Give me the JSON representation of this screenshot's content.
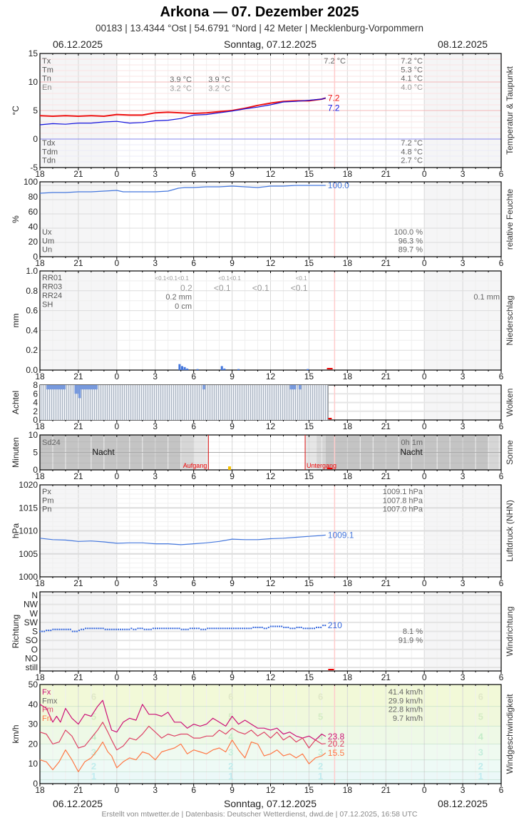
{
  "header": {
    "title": "Arkona  —  07. Dezember 2025",
    "subtitle": "00183  |  13.4344 °Ost  |  54.6791 °Nord  |  42 Meter  |  Mecklenburg-Vorpommern",
    "date_prev": "06.12.2025",
    "date_current": "Sonntag, 07.12.2025",
    "date_next": "08.12.2025"
  },
  "footer": {
    "date_prev": "06.12.2025",
    "date_current": "Sonntag, 07.12.2025",
    "date_next": "08.12.2025",
    "credits": "Erstellt von mtwetter.de | Datenbasis: Deutscher Wetterdienst, dwd.de | 07.12.2025, 16:58 UTC"
  },
  "x_ticks": [
    "18",
    "21",
    "0",
    "3",
    "6",
    "9",
    "12",
    "15",
    "18",
    "21",
    "0",
    "3",
    "6"
  ],
  "colors": {
    "temp": "#ee1111",
    "dew": "#1111dd",
    "humidity": "#4477dd",
    "precip": "#4477dd",
    "cloud": "#7799dd",
    "pressure": "#4477dd",
    "winddir": "#3366dd",
    "gust": "#cc1177",
    "wind_mean": "#dd4466",
    "wind_min": "#ff7744",
    "now_line": "#ffcccc",
    "sun_line": "#dd1111"
  },
  "chart_data": [
    {
      "id": "temperature",
      "type": "line",
      "side_title": "Temperatur & Taupunkt",
      "ylabel": "°C",
      "ylim": [
        -5,
        15
      ],
      "yticks": [
        "15",
        "10",
        "5",
        "0",
        "-5"
      ],
      "x_hours_from": "18 (06.12.)",
      "series": [
        {
          "name": "Temperatur",
          "color": "#ee1111",
          "last_label": "7.2",
          "x": [
            18,
            19,
            20,
            21,
            22,
            23,
            0,
            1,
            2,
            3,
            4,
            5,
            6,
            7,
            8,
            9,
            10,
            11,
            12,
            13,
            14,
            15,
            16,
            16.3
          ],
          "values": [
            4.1,
            4.0,
            4.1,
            4.0,
            4.1,
            4.0,
            4.3,
            4.2,
            4.2,
            4.6,
            4.7,
            4.6,
            4.5,
            4.6,
            4.8,
            5.0,
            5.4,
            5.9,
            6.3,
            6.6,
            6.7,
            6.7,
            7.0,
            7.2
          ]
        },
        {
          "name": "Taupunkt",
          "color": "#1111dd",
          "last_label": "7.2",
          "x": [
            18,
            19,
            20,
            21,
            22,
            23,
            0,
            1,
            2,
            3,
            4,
            5,
            6,
            7,
            8,
            9,
            10,
            11,
            12,
            13,
            14,
            15,
            16,
            16.3
          ],
          "values": [
            2.5,
            2.7,
            2.6,
            2.8,
            2.8,
            3.0,
            3.1,
            2.8,
            2.9,
            3.2,
            3.3,
            3.6,
            4.2,
            4.3,
            4.6,
            4.9,
            5.3,
            5.6,
            6.0,
            6.5,
            6.6,
            6.8,
            7.0,
            7.2
          ]
        }
      ],
      "stats_left": [
        {
          "label": "Tx",
          "v1": "",
          "v2": ""
        },
        {
          "label": "Tm",
          "v1": "",
          "v2": ""
        },
        {
          "label": "Tn",
          "v1": "3.9 °C",
          "v2": "3.9 °C"
        },
        {
          "label": "En",
          "v1": "3.2 °C",
          "v2": "3.2 °C"
        }
      ],
      "tx_today": "7.2 °C",
      "stats_right": [
        "7.2 °C",
        "5.3 °C",
        "4.1 °C",
        "4.0 °C"
      ],
      "dew_labels": [
        "Tdx",
        "Tdm",
        "Tdn"
      ],
      "dew_stats": [
        "7.2 °C",
        "4.8 °C",
        "2.7 °C"
      ]
    },
    {
      "id": "humidity",
      "type": "line",
      "side_title": "relative Feuchte",
      "ylabel": "%",
      "ylim": [
        0,
        100
      ],
      "yticks": [
        "100",
        "80",
        "60",
        "40",
        "20",
        "0"
      ],
      "series": [
        {
          "name": "relative Feuchte",
          "color": "#4477dd",
          "last_label": "100.0",
          "x": [
            18,
            19,
            20,
            21,
            22,
            23,
            0,
            0.5,
            1,
            2,
            3,
            4,
            4.8,
            5.3,
            6,
            7,
            8,
            9,
            10,
            11,
            12,
            13,
            14,
            15,
            16,
            16.3
          ],
          "values": [
            89,
            90,
            90,
            91,
            91,
            92,
            93,
            91,
            91,
            91,
            91,
            92,
            96,
            97,
            97,
            98,
            98,
            99,
            98,
            97,
            99,
            99,
            100,
            100,
            100,
            100
          ]
        }
      ],
      "stats_labels": [
        "Ux",
        "Um",
        "Un"
      ],
      "stats": [
        "100.0 %",
        "96.3 %",
        "89.7 %"
      ]
    },
    {
      "id": "precipitation",
      "type": "bar",
      "side_title": "Niederschlag",
      "ylabel": "mm",
      "ylim": [
        0,
        1.0
      ],
      "yticks": [
        "1.0",
        "0.8",
        "0.6",
        "0.4",
        "0.2",
        "0.0"
      ],
      "bars": {
        "x": [
          4.9,
          5.1,
          5.3,
          5.5,
          6.3,
          8.2,
          8.4,
          9.5,
          14.9
        ],
        "values": [
          0.06,
          0.04,
          0.03,
          0.015,
          0.01,
          0.04,
          0.015,
          0.01,
          0.01
        ]
      },
      "labels": [
        "RR01",
        "RR03",
        "RR24",
        "SH"
      ],
      "rr01": [
        {
          "hour": 4.3,
          "text": "<0.1<0.1<0.1"
        },
        {
          "hour": 8.8,
          "text": "<0.1<0.1"
        },
        {
          "hour": 14.4,
          "text": "<0.1"
        }
      ],
      "rr03": [
        {
          "hour": 6,
          "text": "0.2"
        },
        {
          "hour": 9,
          "text": "<0.1"
        },
        {
          "hour": 12,
          "text": "<0.1"
        },
        {
          "hour": 15,
          "text": "<0.1"
        }
      ],
      "rr24_today": "0.2 mm",
      "sh_today": "0 cm",
      "rr24_next": "0.1 mm"
    },
    {
      "id": "clouds",
      "type": "bar",
      "side_title": "Wolken",
      "ylabel": "Achtel",
      "ylim": [
        0,
        8
      ],
      "yticks": [
        "8",
        "6",
        "4",
        "2",
        "0"
      ],
      "coverage_until_hour": 16.5,
      "dips": [
        {
          "from": 18.5,
          "to": 20.0,
          "value": 7
        },
        {
          "from": 20.7,
          "to": 21.0,
          "value": 6
        },
        {
          "from": 21.0,
          "to": 21.2,
          "value": 5
        },
        {
          "from": 21.2,
          "to": 22.5,
          "value": 7
        },
        {
          "from": 6.7,
          "to": 6.9,
          "value": 7
        },
        {
          "from": 13.5,
          "to": 14.0,
          "value": 7
        },
        {
          "from": 14.2,
          "to": 14.4,
          "value": 7
        }
      ]
    },
    {
      "id": "sunshine",
      "type": "bar",
      "side_title": "Sonne",
      "ylabel": "Minuten",
      "ylim": [
        0,
        10
      ],
      "yticks": [
        "10",
        "5",
        "0"
      ],
      "label": "Sd24",
      "night_label": "Nacht",
      "sunrise_label": "Aufgang",
      "sunset_label": "Untergang",
      "sunrise_hour": 7.15,
      "sunset_hour": 14.7,
      "sd24_next": "0h 1m",
      "bars": {
        "x": [
          8.8
        ],
        "values": [
          1
        ]
      }
    },
    {
      "id": "pressure",
      "type": "line",
      "side_title": "Luftdruck (NHN)",
      "ylabel": "hPa",
      "ylim": [
        1000,
        1020
      ],
      "yticks": [
        "1020",
        "1015",
        "1010",
        "1005",
        "1000"
      ],
      "series": [
        {
          "name": "Luftdruck",
          "color": "#4477dd",
          "last_label": "1009.1",
          "x": [
            18,
            19,
            20,
            21,
            22,
            23,
            0,
            1,
            2,
            3,
            4,
            5,
            6,
            7,
            8,
            9,
            10,
            11,
            12,
            13,
            14,
            15,
            16,
            16.3
          ],
          "values": [
            1008.4,
            1008.1,
            1008.0,
            1007.7,
            1007.8,
            1007.6,
            1007.3,
            1007.4,
            1007.4,
            1007.2,
            1007.2,
            1007.0,
            1007.2,
            1007.4,
            1007.7,
            1008.2,
            1008.1,
            1008.1,
            1008.3,
            1008.4,
            1008.6,
            1008.8,
            1009.0,
            1009.1
          ]
        }
      ],
      "stats_labels": [
        "Px",
        "Pm",
        "Pn"
      ],
      "stats": [
        "1009.1 hPa",
        "1007.8 hPa",
        "1007.0 hPa"
      ]
    },
    {
      "id": "wind_direction",
      "type": "scatter",
      "side_title": "Windrichtung",
      "ylabel": "Richtung",
      "ycats": [
        "N",
        "NW",
        "W",
        "SW",
        "S",
        "SO",
        "O",
        "NO",
        "still"
      ],
      "series": [
        {
          "name": "Windrichtung (Grad)",
          "color": "#3366dd",
          "last_label": "210",
          "x": [
            18,
            18.5,
            19,
            19.5,
            20,
            20.5,
            21,
            21.2,
            21.5,
            22,
            22.5,
            23,
            0,
            0.5,
            1,
            1.3,
            1.6,
            2,
            2.4,
            2.8,
            3,
            3.5,
            4,
            4.5,
            5,
            5.6,
            6,
            6.5,
            7,
            7.5,
            8,
            8.5,
            9,
            9.5,
            10,
            10.5,
            10.7,
            11,
            11.5,
            11.8,
            12,
            12.5,
            13,
            13.5,
            14,
            14.5,
            15,
            15.5,
            16,
            16.3
          ],
          "values": [
            180,
            180,
            185,
            190,
            190,
            190,
            180,
            185,
            190,
            195,
            195,
            195,
            190,
            190,
            190,
            195,
            190,
            195,
            190,
            190,
            195,
            195,
            195,
            195,
            195,
            190,
            195,
            195,
            190,
            195,
            195,
            195,
            195,
            195,
            195,
            195,
            200,
            200,
            200,
            195,
            200,
            205,
            205,
            200,
            195,
            200,
            195,
            195,
            200,
            210
          ]
        }
      ],
      "stats": [
        "8.1 %",
        "91.9 %"
      ]
    },
    {
      "id": "wind_speed",
      "type": "line",
      "side_title": "Windgeschwindigkeit",
      "ylabel": "km/h",
      "ylim": [
        0,
        50
      ],
      "yticks": [
        "50",
        "40",
        "30",
        "20",
        "10",
        "0"
      ],
      "beaufort_labels": [
        "6",
        "5",
        "4",
        "3",
        "2",
        "1"
      ],
      "series": [
        {
          "name": "Fx",
          "color": "#cc1177",
          "last_label": "23.8",
          "x": [
            18,
            18.5,
            19,
            19.3,
            19.6,
            20,
            20.5,
            21,
            21.5,
            22,
            22.5,
            22.9,
            23.3,
            23.6,
            0,
            0.5,
            1,
            1.5,
            2,
            2.5,
            3,
            3.5,
            4,
            4.5,
            5,
            5.5,
            6,
            6.5,
            7,
            7.5,
            8,
            8.5,
            9,
            9.5,
            10,
            10.5,
            11,
            11.5,
            12,
            12.5,
            13,
            13.5,
            14,
            14.5,
            15,
            15.5,
            16,
            16.3
          ],
          "values": [
            40,
            38,
            31,
            34,
            31,
            38,
            33,
            30,
            35,
            34,
            39,
            42,
            33,
            27,
            26,
            31,
            33,
            32,
            40,
            35,
            35,
            34,
            36,
            31,
            31,
            28,
            30,
            29,
            30,
            33,
            31,
            29,
            34,
            30,
            32,
            30,
            28,
            28,
            27,
            28,
            25,
            26,
            24,
            23,
            24,
            22,
            25,
            23.8
          ]
        },
        {
          "name": "Fm",
          "color": "#dd4466",
          "last_label": "20.2",
          "x": [
            18,
            18.5,
            19,
            19.5,
            20,
            20.5,
            21,
            21.5,
            22,
            22.5,
            22.9,
            23.3,
            23.6,
            0,
            0.5,
            1,
            1.5,
            2,
            2.5,
            3,
            3.5,
            4,
            4.5,
            5,
            5.5,
            6,
            6.5,
            7,
            7.5,
            8,
            8.5,
            9,
            9.5,
            10,
            10.5,
            11,
            11.5,
            12,
            12.5,
            13,
            13.5,
            14,
            14.5,
            15,
            15.5,
            16,
            16.3
          ],
          "values": [
            26,
            25,
            20,
            21,
            27,
            24,
            18,
            19,
            23,
            27,
            31,
            26,
            22,
            17,
            19,
            23,
            22,
            25,
            29,
            26,
            23,
            25,
            24,
            25,
            25,
            23,
            23,
            24,
            24,
            27,
            25,
            28,
            26,
            25,
            27,
            24,
            26,
            23,
            26,
            22,
            24,
            21,
            23,
            18,
            22,
            20,
            20.2
          ]
        },
        {
          "name": "Fn",
          "color": "#ff7744",
          "last_label": "15.5",
          "x": [
            18,
            18.5,
            19,
            19.5,
            20,
            20.5,
            21,
            21.5,
            22,
            22.5,
            22.9,
            23.3,
            23.6,
            0,
            0.5,
            1,
            1.5,
            2,
            2.5,
            3,
            3.5,
            4,
            4.5,
            5,
            5.5,
            6,
            6.5,
            7,
            7.5,
            8,
            8.5,
            9,
            9.5,
            10,
            10.5,
            11,
            11.5,
            12,
            12.5,
            13,
            13.5,
            14,
            14.5,
            15,
            15.5,
            16,
            16.3
          ],
          "values": [
            12,
            11,
            7,
            11,
            17,
            12,
            6,
            11,
            13,
            17,
            21,
            16,
            14,
            8,
            11,
            13,
            12,
            16,
            15,
            12,
            16,
            17,
            18,
            20,
            15,
            17,
            16,
            15,
            17,
            18,
            16,
            22,
            17,
            13,
            21,
            20,
            14,
            15,
            17,
            14,
            15,
            13,
            15,
            10,
            13,
            14,
            15.5
          ]
        }
      ],
      "stats_labels": [
        "Fx",
        "Fmx",
        "Fm",
        "Fn"
      ],
      "stats": [
        "41.4 km/h",
        "29.9 km/h",
        "22.8 km/h",
        "9.7 km/h"
      ]
    }
  ]
}
